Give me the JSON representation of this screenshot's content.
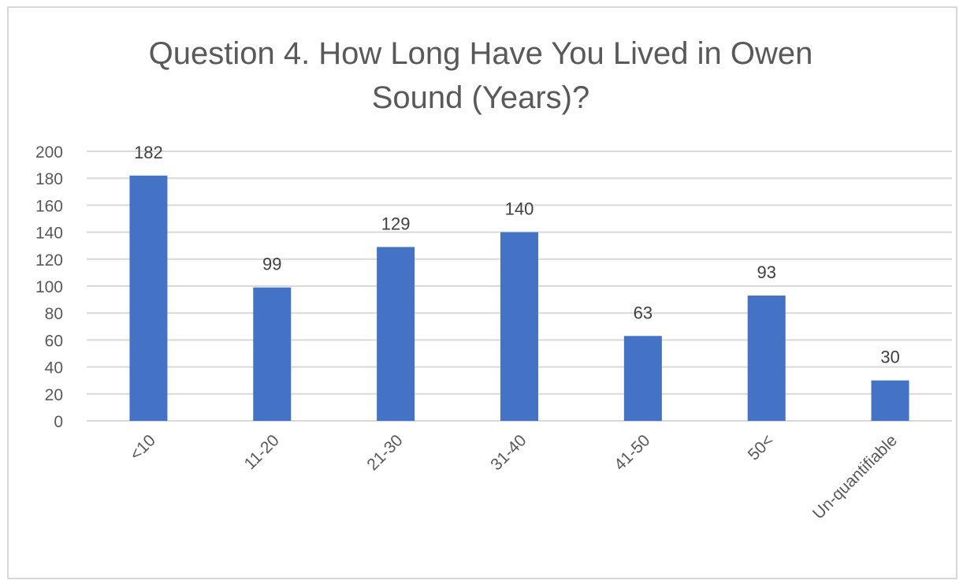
{
  "chart_data": {
    "type": "bar",
    "title": "Question 4. How Long Have You Lived in Owen Sound (Years)?",
    "categories": [
      "<10",
      "11-20",
      "21-30",
      "31-40",
      "41-50",
      "50<",
      "Un-quantifiable"
    ],
    "values": [
      182,
      99,
      129,
      140,
      63,
      93,
      30
    ],
    "data_labels": [
      "182",
      "99",
      "129",
      "140",
      "63",
      "93",
      "30"
    ],
    "ylim": [
      0,
      200
    ],
    "yticks": [
      0,
      20,
      40,
      60,
      80,
      100,
      120,
      140,
      160,
      180,
      200
    ],
    "grid": true,
    "legend": "none",
    "bar_color": "#4472c4",
    "grid_color": "#d9d9d9"
  }
}
